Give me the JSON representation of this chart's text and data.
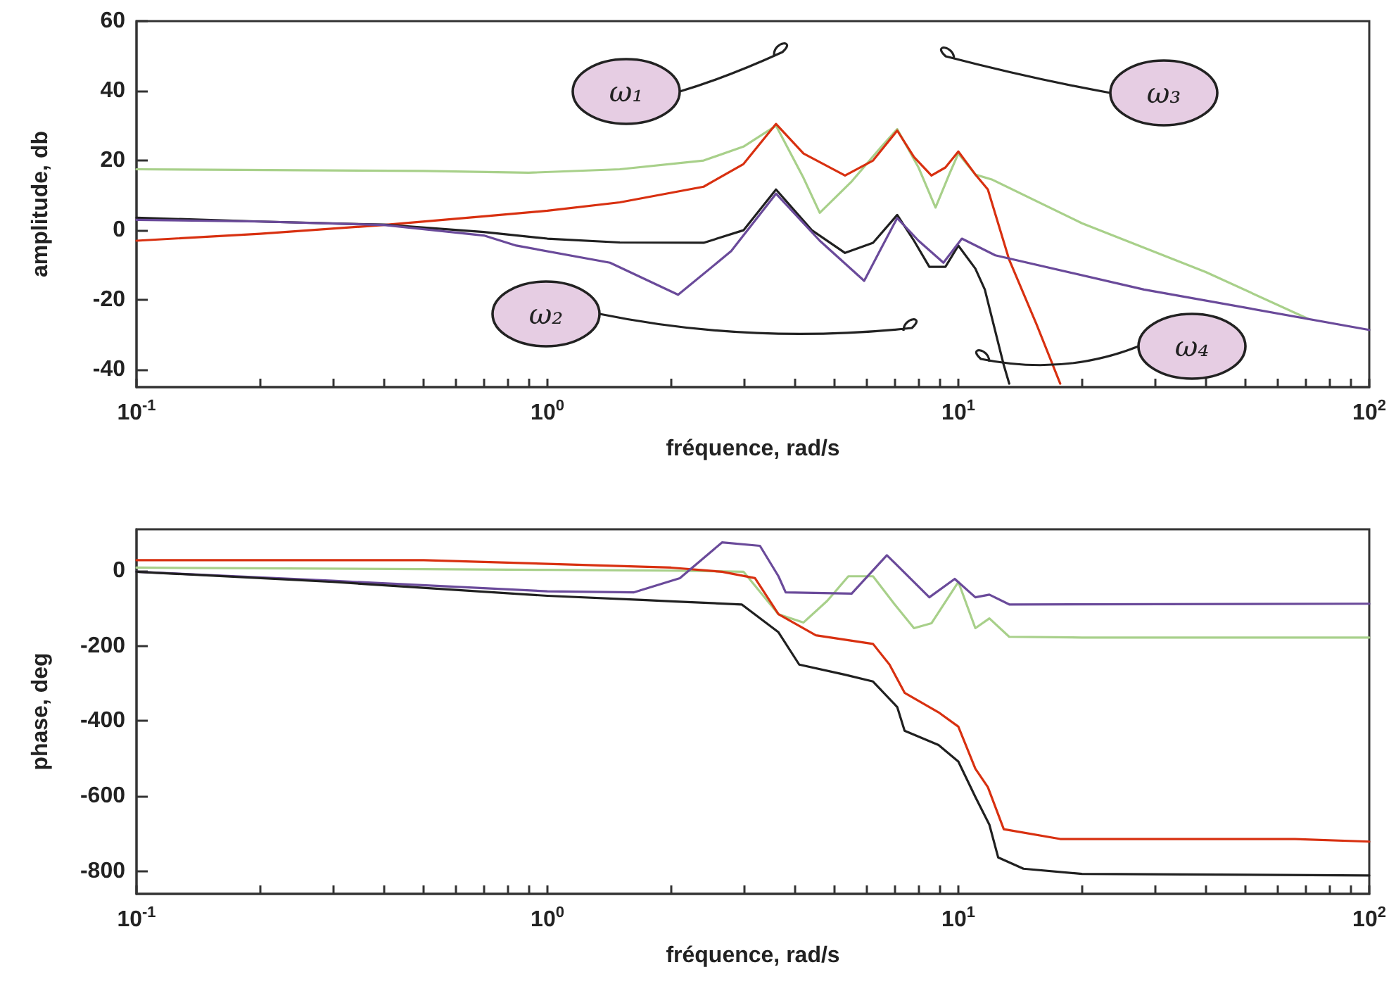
{
  "chart_data": [
    {
      "type": "line",
      "xlabel": "fréquence, rad/s",
      "ylabel": "amplitude, db",
      "log": "x",
      "line_style": "solid",
      "marker": "none",
      "xlim": [
        0.1,
        100
      ],
      "ylim": [
        -45,
        60
      ],
      "yticks": [
        -40,
        -20,
        0,
        20,
        40,
        60
      ],
      "xticks": [
        {
          "value": 0.1,
          "label": "10$^{-1}$"
        },
        {
          "value": 0.2,
          "label": null
        },
        {
          "value": 0.3,
          "label": null
        },
        {
          "value": 0.4,
          "label": null
        },
        {
          "value": 0.5,
          "label": null
        },
        {
          "value": 0.6,
          "label": null
        },
        {
          "value": 0.7,
          "label": null
        },
        {
          "value": 0.8,
          "label": null
        },
        {
          "value": 0.9,
          "label": null
        },
        {
          "value": 1,
          "label": "10$^{0}$"
        },
        {
          "value": 2,
          "label": null
        },
        {
          "value": 3,
          "label": null
        },
        {
          "value": 4,
          "label": null
        },
        {
          "value": 5,
          "label": null
        },
        {
          "value": 6,
          "label": null
        },
        {
          "value": 7,
          "label": null
        },
        {
          "value": 8,
          "label": null
        },
        {
          "value": 9,
          "label": null
        },
        {
          "value": 10,
          "label": "10$^{1}$"
        },
        {
          "value": 20,
          "label": null
        },
        {
          "value": 30,
          "label": null
        },
        {
          "value": 40,
          "label": null
        },
        {
          "value": 50,
          "label": null
        },
        {
          "value": 60,
          "label": null
        },
        {
          "value": 70,
          "label": null
        },
        {
          "value": 80,
          "label": null
        },
        {
          "value": 90,
          "label": null
        },
        {
          "value": 100,
          "label": "10$^{2}$"
        }
      ],
      "annotations": [
        "ω₁",
        "ω₃",
        "ω₂",
        "ω₄"
      ],
      "series": [
        {
          "color": "#a8d08a",
          "x": [
            0.1,
            0.5,
            0.9,
            1.5,
            2.4,
            3.0,
            3.6,
            4.2,
            4.6,
            5.5,
            6.5,
            7.1,
            8.0,
            8.8,
            9.5,
            10,
            11,
            12.1,
            20,
            40,
            71
          ],
          "values": [
            17.5,
            17,
            16.5,
            17.5,
            20,
            24,
            30,
            15,
            5,
            14,
            24,
            29,
            18,
            6.5,
            16,
            22,
            16,
            14.5,
            2,
            -12,
            -25.4
          ]
        },
        {
          "color": "#d83010",
          "x": [
            0.1,
            0.2,
            0.4,
            0.7,
            1,
            1.5,
            2.4,
            3.0,
            3.6,
            4.2,
            5.3,
            6.2,
            7.1,
            7.8,
            8.6,
            9.3,
            10,
            11,
            11.8,
            13.3,
            15.5,
            17.7
          ],
          "values": [
            -3,
            -1,
            1.5,
            4,
            5.6,
            8,
            12.5,
            19,
            30.5,
            22,
            15.7,
            20,
            28.6,
            21,
            15.7,
            18,
            22.6,
            16,
            11.7,
            -8.5,
            -27,
            -44
          ]
        },
        {
          "color": "#202020",
          "x": [
            0.1,
            0.2,
            0.4,
            0.7,
            1,
            1.5,
            2.4,
            3.0,
            3.6,
            4.4,
            5.3,
            6.2,
            7.1,
            7.8,
            8.5,
            9.3,
            10,
            11,
            11.6,
            12.9,
            13.3
          ],
          "values": [
            3.6,
            2.5,
            1.6,
            -0.5,
            -2.4,
            -3.5,
            -3.6,
            0,
            11.7,
            0,
            -6.5,
            -3.6,
            4.4,
            -3,
            -10.5,
            -10.5,
            -4.4,
            -11,
            -17,
            -38.7,
            -44
          ]
        },
        {
          "color": "#6a4a9a",
          "x": [
            0.1,
            0.2,
            0.4,
            0.7,
            0.84,
            1.42,
            2.08,
            2.8,
            3.6,
            4.6,
            5.9,
            6.5,
            7.1,
            8.0,
            9.2,
            10.2,
            12.3,
            28.3,
            100
          ],
          "values": [
            3,
            2.5,
            1.5,
            -1.5,
            -4.4,
            -9.3,
            -18.5,
            -6,
            10.5,
            -3,
            -14.5,
            -5,
            3.5,
            -3,
            -9.3,
            -2.4,
            -7.2,
            -17,
            -28.6
          ]
        }
      ]
    },
    {
      "type": "line",
      "xlabel": "fréquence, rad/s",
      "ylabel": "phase, deg",
      "log": "x",
      "line_style": "solid",
      "marker": "none",
      "xlim": [
        0.1,
        100
      ],
      "ylim": [
        -860,
        110
      ],
      "yticks": [
        -800,
        -600,
        -400,
        -200,
        0
      ],
      "xticks": [
        {
          "value": 0.1,
          "label": "10$^{-1}$"
        },
        {
          "value": 0.2,
          "label": null
        },
        {
          "value": 0.3,
          "label": null
        },
        {
          "value": 0.4,
          "label": null
        },
        {
          "value": 0.5,
          "label": null
        },
        {
          "value": 0.6,
          "label": null
        },
        {
          "value": 0.7,
          "label": null
        },
        {
          "value": 0.8,
          "label": null
        },
        {
          "value": 0.9,
          "label": null
        },
        {
          "value": 1,
          "label": "10$^{0}$"
        },
        {
          "value": 2,
          "label": null
        },
        {
          "value": 3,
          "label": null
        },
        {
          "value": 4,
          "label": null
        },
        {
          "value": 5,
          "label": null
        },
        {
          "value": 6,
          "label": null
        },
        {
          "value": 7,
          "label": null
        },
        {
          "value": 8,
          "label": null
        },
        {
          "value": 9,
          "label": null
        },
        {
          "value": 10,
          "label": "10$^{1}$"
        },
        {
          "value": 20,
          "label": null
        },
        {
          "value": 30,
          "label": null
        },
        {
          "value": 40,
          "label": null
        },
        {
          "value": 50,
          "label": null
        },
        {
          "value": 60,
          "label": null
        },
        {
          "value": 70,
          "label": null
        },
        {
          "value": 80,
          "label": null
        },
        {
          "value": 90,
          "label": null
        },
        {
          "value": 100,
          "label": "10$^{2}$"
        }
      ],
      "series": [
        {
          "color": "#a8d08a",
          "x": [
            0.1,
            0.5,
            1,
            2,
            3.0,
            3.65,
            4.2,
            4.8,
            5.4,
            6.2,
            7.0,
            7.8,
            8.6,
            10,
            11,
            11.9,
            13.3,
            20,
            100
          ],
          "values": [
            8,
            4,
            2,
            0,
            -3,
            -116,
            -138,
            -80,
            -15,
            -15,
            -90,
            -153,
            -140,
            -30,
            -153,
            -127,
            -176,
            -178,
            -178
          ]
        },
        {
          "color": "#d83010",
          "x": [
            0.1,
            0.5,
            1,
            2,
            2.66,
            3.2,
            3.65,
            4.5,
            6.2,
            6.8,
            7.4,
            8.95,
            10,
            11,
            11.8,
            12.9,
            17.7,
            66,
            100
          ],
          "values": [
            28,
            28,
            18,
            8,
            -3,
            -20,
            -116,
            -172,
            -195,
            -250,
            -325,
            -377,
            -415,
            -527,
            -576,
            -688,
            -714,
            -714,
            -721
          ]
        },
        {
          "color": "#6a4a9a",
          "x": [
            0.1,
            0.3,
            1,
            1.62,
            2.1,
            2.66,
            3.29,
            3.65,
            3.8,
            5.5,
            6.7,
            8.5,
            9.8,
            11,
            11.9,
            13.3,
            100
          ],
          "values": [
            -3,
            -27,
            -55,
            -58,
            -20,
            75,
            66,
            -15,
            -58,
            -61,
            41,
            -71,
            -22,
            -71,
            -64,
            -90,
            -88
          ]
        },
        {
          "color": "#202020",
          "x": [
            0.1,
            0.3,
            1,
            1.7,
            2.05,
            2.97,
            3.65,
            4.1,
            5.3,
            6.2,
            7.1,
            7.4,
            8.95,
            10,
            11,
            11.9,
            12.5,
            14.4,
            20,
            100
          ],
          "values": [
            -3,
            -30,
            -67,
            -78,
            -82,
            -90,
            -164,
            -250,
            -277,
            -295,
            -363,
            -426,
            -464,
            -508,
            -602,
            -676,
            -763,
            -793,
            -807,
            -811
          ]
        }
      ]
    }
  ]
}
